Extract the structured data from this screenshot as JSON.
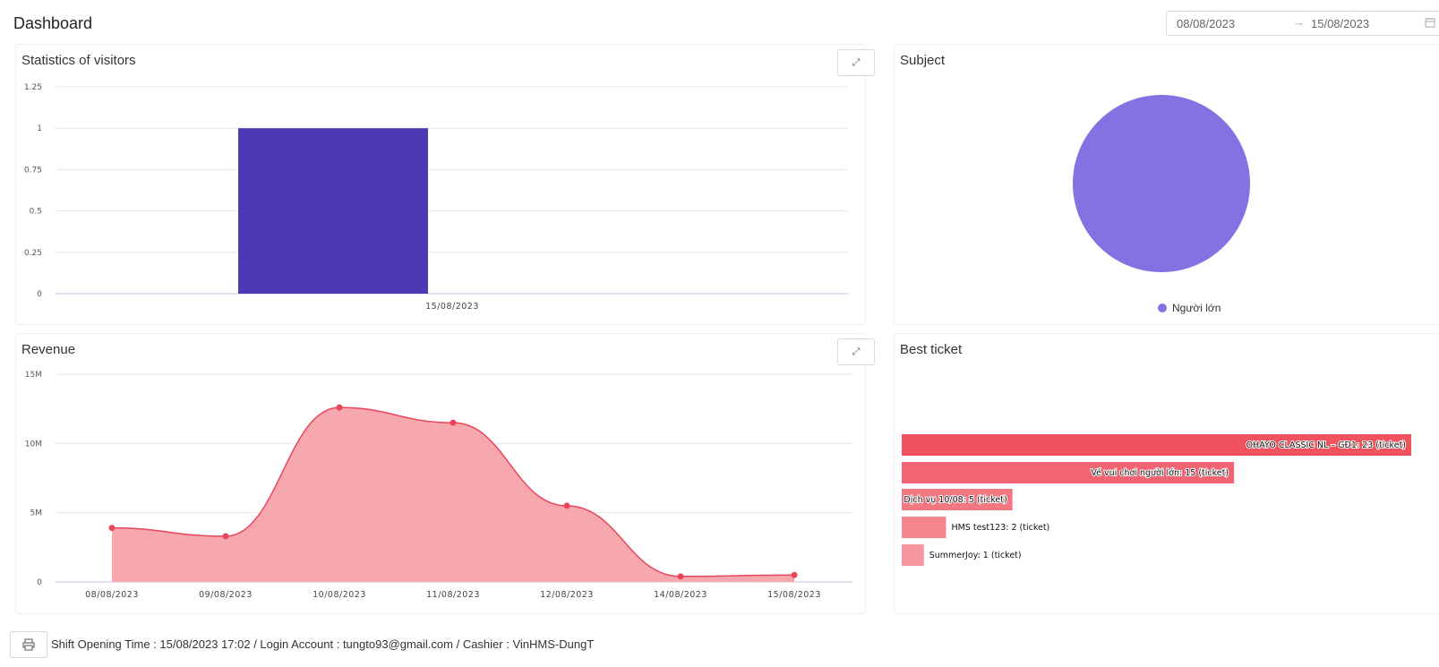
{
  "header": {
    "title": "Dashboard",
    "date_from": "08/08/2023",
    "date_to": "15/08/2023",
    "arrow": "→"
  },
  "visitors": {
    "title": "Statistics of visitors",
    "expand_icon": "⤢"
  },
  "subject": {
    "title": "Subject",
    "legend": "Người lớn",
    "color": "#8671e3"
  },
  "revenue": {
    "title": "Revenue",
    "expand_icon": "⤢"
  },
  "best_ticket": {
    "title": "Best ticket"
  },
  "footer": {
    "text": "Shift Opening Time : 15/08/2023 17:02 / Login Account : tungto93@gmail.com / Cashier : VinHMS-DungT"
  },
  "colors": {
    "bar": "#4d39b2",
    "revenue_line": "#e8465b",
    "revenue_fill": "#f7a8ae"
  },
  "chart_data": [
    {
      "type": "bar",
      "title": "Statistics of visitors",
      "categories": [
        "15/08/2023"
      ],
      "values": [
        1
      ],
      "ylim": [
        0,
        1.25
      ],
      "yticks": [
        "0",
        "0.25",
        "0.5",
        "0.75",
        "1",
        "1.25"
      ]
    },
    {
      "type": "pie",
      "title": "Subject",
      "labels": [
        "Người lớn"
      ],
      "values": [
        1
      ]
    },
    {
      "type": "area",
      "title": "Revenue",
      "categories": [
        "08/08/2023",
        "09/08/2023",
        "10/08/2023",
        "11/08/2023",
        "12/08/2023",
        "14/08/2023",
        "15/08/2023"
      ],
      "values": [
        3900000,
        3300000,
        12600000,
        11500000,
        5500000,
        400000,
        500000
      ],
      "ylim": [
        0,
        15000000
      ],
      "yticks": [
        "0",
        "5M",
        "10M",
        "15M"
      ]
    },
    {
      "type": "bar",
      "orientation": "horizontal",
      "title": "Best ticket",
      "categories": [
        "OHAYO CLASSIC NL – GĐ1",
        "Vé vui chơi người lớn",
        "Dịch vụ 10/08",
        "HMS test123",
        "SummerJoy"
      ],
      "values": [
        23,
        15,
        5,
        2,
        1
      ],
      "labels": [
        "OHAYO CLASSIC NL – GĐ1: 23 (ticket)",
        "Vé vui chơi người lớn: 15 (ticket)",
        "Dịch vụ 10/08: 5 (ticket)",
        "HMS test123: 2 (ticket)",
        "SummerJoy: 1 (ticket)"
      ],
      "colors": [
        "#f0525e",
        "#f16472",
        "#f37782",
        "#f5858f",
        "#f7979f"
      ]
    }
  ]
}
